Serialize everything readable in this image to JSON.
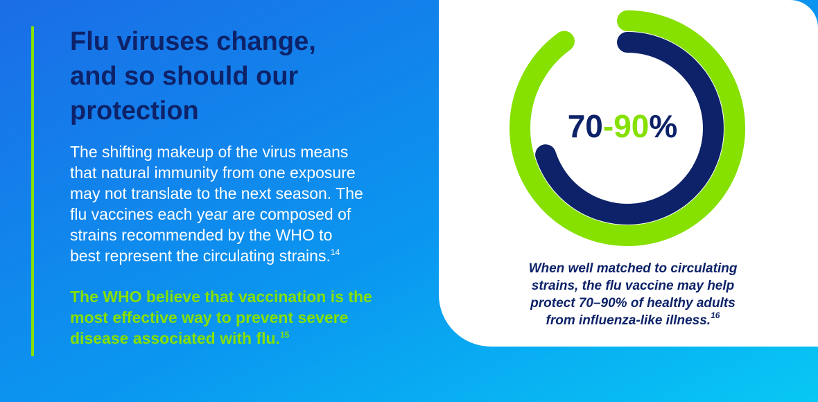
{
  "heading": {
    "lines": [
      "Flu viruses change,",
      "and so should our",
      "protection"
    ]
  },
  "body": {
    "lines": [
      "The shifting makeup of the virus means",
      "that natural immunity from one exposure",
      "may not translate to the next season. The",
      "flu vaccines each year are composed of",
      "strains recommended by the WHO to",
      "best represent the circulating strains."
    ],
    "ref": "14"
  },
  "highlight": {
    "lines": [
      "The WHO believe that vaccination is the",
      "most effective way to prevent severe",
      "disease associated with flu."
    ],
    "ref": "15"
  },
  "donut": {
    "low": 70,
    "separator": "-",
    "high": 90,
    "unit": "%",
    "low_color": "#0d2268",
    "high_color": "#86e000"
  },
  "caption": {
    "lines": [
      "When well matched to circulating",
      "strains, the flu vaccine may help",
      "protect 70–90% of healthy adults",
      "from influenza-like illness."
    ],
    "ref": "16"
  }
}
